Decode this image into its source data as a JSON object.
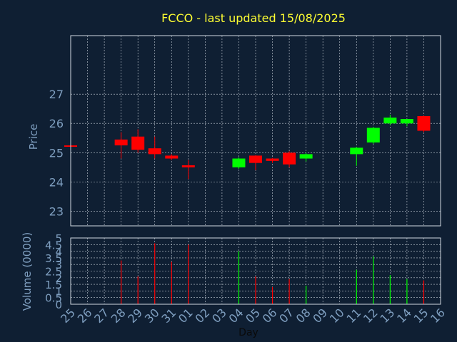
{
  "chart_data": {
    "type": "candlestick",
    "title": "FCCO - last updated 15/08/2025",
    "xlabel": "Day",
    "price_panel": {
      "ylabel": "Price",
      "yticks": [
        23,
        24,
        25,
        26,
        27
      ],
      "ylim": [
        22.5,
        29
      ]
    },
    "volume_panel": {
      "ylabel": "Volume (0000)",
      "yticks": [
        "0",
        "0.5",
        "1",
        "1.5",
        "2",
        "2.5",
        "3",
        "3.5",
        "4",
        "4.5",
        "5"
      ],
      "ylim": [
        0,
        5
      ]
    },
    "categories": [
      "25",
      "26",
      "27",
      "28",
      "29",
      "30",
      "31",
      "01",
      "02",
      "03",
      "04",
      "05",
      "06",
      "07",
      "08",
      "09",
      "10",
      "11",
      "12",
      "13",
      "14",
      "15",
      "16"
    ],
    "candles": [
      {
        "day": "25",
        "open": 25.25,
        "high": 25.27,
        "low": 25.22,
        "close": 25.23,
        "volume": 0
      },
      {
        "day": "28",
        "open": 25.45,
        "high": 25.7,
        "low": 24.8,
        "close": 25.25,
        "volume": 3.3
      },
      {
        "day": "29",
        "open": 25.55,
        "high": 25.8,
        "low": 25.0,
        "close": 25.1,
        "volume": 2.1
      },
      {
        "day": "30",
        "open": 25.15,
        "high": 25.55,
        "low": 24.8,
        "close": 24.95,
        "volume": 4.6
      },
      {
        "day": "31",
        "open": 24.9,
        "high": 24.95,
        "low": 24.75,
        "close": 24.8,
        "volume": 3.2
      },
      {
        "day": "01",
        "open": 24.57,
        "high": 24.75,
        "low": 24.1,
        "close": 24.5,
        "volume": 4.5
      },
      {
        "day": "04",
        "open": 24.5,
        "high": 24.85,
        "low": 24.45,
        "close": 24.8,
        "volume": 4.0
      },
      {
        "day": "05",
        "open": 24.9,
        "high": 24.92,
        "low": 24.4,
        "close": 24.65,
        "volume": 2.1
      },
      {
        "day": "06",
        "open": 24.8,
        "high": 24.82,
        "low": 24.65,
        "close": 24.72,
        "volume": 1.3
      },
      {
        "day": "07",
        "open": 25.0,
        "high": 25.05,
        "low": 24.5,
        "close": 24.6,
        "volume": 1.9
      },
      {
        "day": "08",
        "open": 24.8,
        "high": 25.0,
        "low": 24.7,
        "close": 24.95,
        "volume": 1.4
      },
      {
        "day": "11",
        "open": 24.95,
        "high": 25.2,
        "low": 24.55,
        "close": 25.17,
        "volume": 2.6
      },
      {
        "day": "12",
        "open": 25.35,
        "high": 25.88,
        "low": 25.3,
        "close": 25.85,
        "volume": 3.6
      },
      {
        "day": "13",
        "open": 26.0,
        "high": 26.3,
        "low": 25.95,
        "close": 26.2,
        "volume": 2.2
      },
      {
        "day": "14",
        "open": 26.0,
        "high": 26.15,
        "low": 25.9,
        "close": 26.15,
        "volume": 1.9
      },
      {
        "day": "15",
        "open": 26.25,
        "high": 26.27,
        "low": 25.7,
        "close": 25.75,
        "volume": 1.8
      }
    ],
    "grid": true,
    "colors": {
      "background": "#0f1f33",
      "up": "#00ff00",
      "down": "#ff0000",
      "title": "#ffff33",
      "axis_text": "#7f9fc0",
      "grid": "#c8d0d8",
      "frame": "#d0d8e0"
    }
  }
}
